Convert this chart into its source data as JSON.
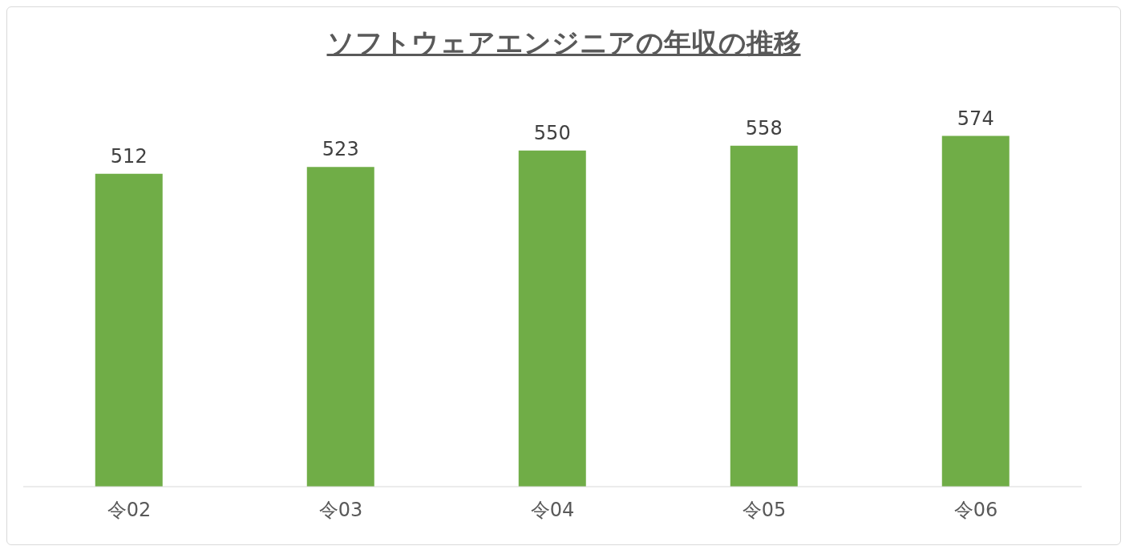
{
  "chart_data": {
    "type": "bar",
    "title": "ソフトウェアエンジニアの年収の推移",
    "categories": [
      "令02",
      "令03",
      "令04",
      "令05",
      "令06"
    ],
    "values": [
      512,
      523,
      550,
      558,
      574
    ],
    "color": "#70ad47",
    "data_labels": true
  }
}
